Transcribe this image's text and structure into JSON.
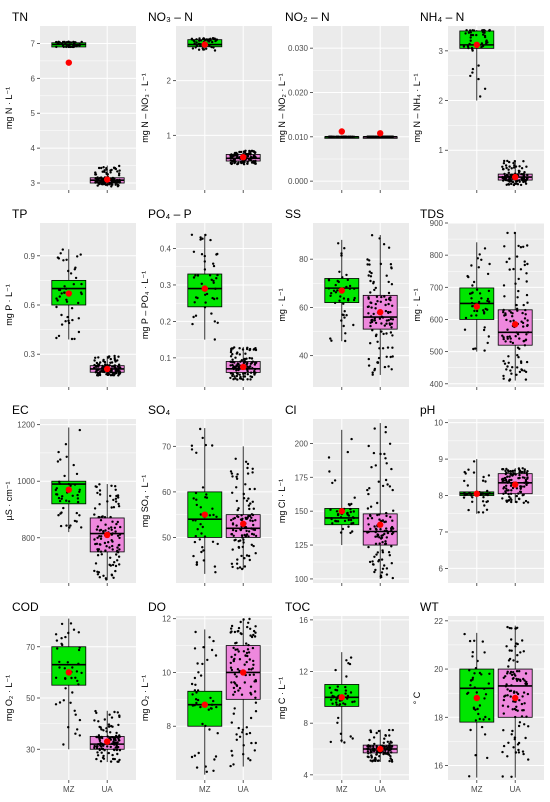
{
  "colors": {
    "panel_bg": "#ebebeb",
    "grid_major": "#ffffff",
    "mz_box": "#00e600",
    "ua_box": "#ee88dd",
    "point": "#000000",
    "mean": "#ff0000"
  },
  "chart_data": [
    {
      "type": "box",
      "title": "TN",
      "ylabel": "mg N · L⁻¹",
      "ylim": [
        2.8,
        7.5
      ],
      "yticks": [
        3,
        4,
        5,
        6,
        7
      ],
      "ytick_labels": [
        "3",
        "4",
        "5",
        "6",
        "7"
      ],
      "categories": [
        "MZ",
        "UA"
      ],
      "boxes": [
        {
          "q1": 6.9,
          "median": 6.97,
          "q3": 7.02,
          "whisker_low": 6.9,
          "whisker_high": 7.05,
          "mean": 6.45
        },
        {
          "q1": 3.0,
          "median": 3.08,
          "q3": 3.15,
          "whisker_low": 2.9,
          "whisker_high": 3.5,
          "mean": 3.1
        }
      ]
    },
    {
      "type": "box",
      "title": "NO₃ – N",
      "ylabel": "mg N – NO₃ · L⁻¹",
      "ylim": [
        0,
        3.0
      ],
      "yticks": [
        1,
        2
      ],
      "ytick_labels": [
        "1",
        "2"
      ],
      "categories": [
        "MZ",
        "UA"
      ],
      "boxes": [
        {
          "q1": 2.62,
          "median": 2.66,
          "q3": 2.75,
          "whisker_low": 2.55,
          "whisker_high": 2.78,
          "mean": 2.66
        },
        {
          "q1": 0.53,
          "median": 0.58,
          "q3": 0.65,
          "whisker_low": 0.47,
          "whisker_high": 0.72,
          "mean": 0.6
        }
      ]
    },
    {
      "type": "box",
      "title": "NO₂ – N",
      "ylabel": "mg N – NO₂ · L⁻¹",
      "ylim": [
        -0.002,
        0.035
      ],
      "yticks": [
        0,
        0.01,
        0.02,
        0.03
      ],
      "ytick_labels": [
        "0.000",
        "0.010",
        "0.020",
        "0.030"
      ],
      "categories": [
        "MZ",
        "UA"
      ],
      "boxes": [
        {
          "q1": 0.01,
          "median": 0.01,
          "q3": 0.01,
          "whisker_low": 0.01,
          "whisker_high": 0.01,
          "mean": 0.0112
        },
        {
          "q1": 0.01,
          "median": 0.01,
          "q3": 0.01,
          "whisker_low": 0.01,
          "whisker_high": 0.01,
          "mean": 0.0108
        }
      ]
    },
    {
      "type": "box",
      "title": "NH₄ – N",
      "ylabel": "mg N – NH₄ · L⁻¹",
      "ylim": [
        0.2,
        3.5
      ],
      "yticks": [
        1,
        2,
        3
      ],
      "ytick_labels": [
        "1",
        "2",
        "3"
      ],
      "categories": [
        "MZ",
        "UA"
      ],
      "boxes": [
        {
          "q1": 3.05,
          "median": 3.12,
          "q3": 3.4,
          "whisker_low": 2.0,
          "whisker_high": 3.42,
          "mean": 3.12
        },
        {
          "q1": 0.4,
          "median": 0.46,
          "q3": 0.52,
          "whisker_low": 0.3,
          "whisker_high": 0.8,
          "mean": 0.46
        }
      ]
    },
    {
      "type": "box",
      "title": "TP",
      "ylabel": "mg P · L⁻¹",
      "ylim": [
        0.1,
        1.1
      ],
      "yticks": [
        0.3,
        0.6,
        0.9
      ],
      "ytick_labels": [
        "0.3",
        "0.6",
        "0.9"
      ],
      "categories": [
        "MZ",
        "UA"
      ],
      "boxes": [
        {
          "q1": 0.6,
          "median": 0.7,
          "q3": 0.75,
          "whisker_low": 0.39,
          "whisker_high": 0.94,
          "mean": 0.67
        },
        {
          "q1": 0.19,
          "median": 0.21,
          "q3": 0.23,
          "whisker_low": 0.17,
          "whisker_high": 0.29,
          "mean": 0.21
        }
      ]
    },
    {
      "type": "box",
      "title": "PO₄ – P",
      "ylabel": "mg P – PO₄ · L⁻¹",
      "ylim": [
        0.02,
        0.47
      ],
      "yticks": [
        0.1,
        0.2,
        0.3,
        0.4
      ],
      "ytick_labels": [
        "0.1",
        "0.2",
        "0.3",
        "0.4"
      ],
      "categories": [
        "MZ",
        "UA"
      ],
      "boxes": [
        {
          "q1": 0.24,
          "median": 0.29,
          "q3": 0.33,
          "whisker_low": 0.15,
          "whisker_high": 0.44,
          "mean": 0.29
        },
        {
          "q1": 0.06,
          "median": 0.07,
          "q3": 0.09,
          "whisker_low": 0.04,
          "whisker_high": 0.13,
          "mean": 0.075
        }
      ]
    },
    {
      "type": "box",
      "title": "SS",
      "ylabel": "mg · L⁻¹",
      "ylim": [
        27,
        95
      ],
      "yticks": [
        40,
        60,
        80
      ],
      "ytick_labels": [
        "40",
        "60",
        "80"
      ],
      "categories": [
        "MZ",
        "UA"
      ],
      "boxes": [
        {
          "q1": 62,
          "median": 68,
          "q3": 72,
          "whisker_low": 46,
          "whisker_high": 88,
          "mean": 67
        },
        {
          "q1": 51,
          "median": 56,
          "q3": 65,
          "whisker_low": 32,
          "whisker_high": 90,
          "mean": 58
        }
      ]
    },
    {
      "type": "box",
      "title": "TDS",
      "ylabel": "mg · L⁻¹",
      "ylim": [
        390,
        900
      ],
      "yticks": [
        400,
        500,
        600,
        700,
        800,
        900
      ],
      "ytick_labels": [
        "400",
        "500",
        "600",
        "700",
        "800",
        "900"
      ],
      "categories": [
        "MZ",
        "UA"
      ],
      "boxes": [
        {
          "q1": 600,
          "median": 650,
          "q3": 698,
          "whisker_low": 500,
          "whisker_high": 840,
          "mean": 640
        },
        {
          "q1": 520,
          "median": 560,
          "q3": 630,
          "whisker_low": 410,
          "whisker_high": 870,
          "mean": 585
        }
      ]
    },
    {
      "type": "box",
      "title": "EC",
      "ylabel": "µS · cm⁻¹",
      "ylim": [
        640,
        1220
      ],
      "yticks": [
        800,
        1000,
        1200
      ],
      "ytick_labels": [
        "800",
        "1000",
        "1200"
      ],
      "categories": [
        "MZ",
        "UA"
      ],
      "boxes": [
        {
          "q1": 920,
          "median": 990,
          "q3": 1000,
          "whisker_low": 820,
          "whisker_high": 1190,
          "mean": 970
        },
        {
          "q1": 750,
          "median": 815,
          "q3": 870,
          "whisker_low": 650,
          "whisker_high": 990,
          "mean": 810
        }
      ]
    },
    {
      "type": "box",
      "title": "SO₄",
      "ylabel": "mg SO₄ · L⁻¹",
      "ylim": [
        40,
        76
      ],
      "yticks": [
        50,
        60,
        70
      ],
      "ytick_labels": [
        "50",
        "60",
        "70"
      ],
      "categories": [
        "MZ",
        "UA"
      ],
      "boxes": [
        {
          "q1": 50,
          "median": 54,
          "q3": 60,
          "whisker_low": 42,
          "whisker_high": 74,
          "mean": 55
        },
        {
          "q1": 50,
          "median": 52,
          "q3": 55,
          "whisker_low": 43,
          "whisker_high": 70,
          "mean": 53
        }
      ]
    },
    {
      "type": "box",
      "title": "Cl",
      "ylabel": "mg Cl · L⁻¹",
      "ylim": [
        97,
        218
      ],
      "yticks": [
        100,
        125,
        150,
        175,
        200
      ],
      "ytick_labels": [
        "100",
        "125",
        "150",
        "175",
        "200"
      ],
      "categories": [
        "MZ",
        "UA"
      ],
      "boxes": [
        {
          "q1": 140,
          "median": 145,
          "q3": 152,
          "whisker_low": 125,
          "whisker_high": 210,
          "mean": 150
        },
        {
          "q1": 125,
          "median": 135,
          "q3": 148,
          "whisker_low": 100,
          "whisker_high": 215,
          "mean": 140
        }
      ]
    },
    {
      "type": "box",
      "title": "pH",
      "ylabel": "",
      "ylim": [
        5.6,
        10.1
      ],
      "yticks": [
        6,
        7,
        8,
        9,
        10
      ],
      "ytick_labels": [
        "6",
        "7",
        "8",
        "9",
        "10"
      ],
      "categories": [
        "MZ",
        "UA"
      ],
      "boxes": [
        {
          "q1": 8.0,
          "median": 8.05,
          "q3": 8.1,
          "whisker_low": 7.5,
          "whisker_high": 9.0,
          "mean": 8.05
        },
        {
          "q1": 8.05,
          "median": 8.35,
          "q3": 8.6,
          "whisker_low": 7.8,
          "whisker_high": 8.75,
          "mean": 8.3
        }
      ]
    },
    {
      "type": "box",
      "title": "COD",
      "ylabel": "mg O₂ · L⁻¹",
      "ylim": [
        18,
        82
      ],
      "yticks": [
        30,
        50,
        70
      ],
      "ytick_labels": [
        "30",
        "50",
        "70"
      ],
      "categories": [
        "MZ",
        "UA"
      ],
      "boxes": [
        {
          "q1": 55,
          "median": 63,
          "q3": 70,
          "whisker_low": 30,
          "whisker_high": 81,
          "mean": 60
        },
        {
          "q1": 30,
          "median": 32,
          "q3": 35,
          "whisker_low": 25,
          "whisker_high": 45,
          "mean": 33
        }
      ]
    },
    {
      "type": "box",
      "title": "DO",
      "ylabel": "mg O₂ · L⁻¹",
      "ylim": [
        6,
        12.1
      ],
      "yticks": [
        8,
        10,
        12
      ],
      "ytick_labels": [
        "8",
        "10",
        "12"
      ],
      "categories": [
        "MZ",
        "UA"
      ],
      "boxes": [
        {
          "q1": 8.0,
          "median": 8.8,
          "q3": 9.3,
          "whisker_low": 6.2,
          "whisker_high": 11.6,
          "mean": 8.8
        },
        {
          "q1": 9.0,
          "median": 10.0,
          "q3": 11.0,
          "whisker_low": 6.5,
          "whisker_high": 12.0,
          "mean": 10.0
        }
      ]
    },
    {
      "type": "box",
      "title": "TOC",
      "ylabel": "mg C · L⁻¹",
      "ylim": [
        3.6,
        16.3
      ],
      "yticks": [
        4,
        8,
        12,
        16
      ],
      "ytick_labels": [
        "4",
        "8",
        "12",
        "16"
      ],
      "categories": [
        "MZ",
        "UA"
      ],
      "boxes": [
        {
          "q1": 9.3,
          "median": 10.0,
          "q3": 11.0,
          "whisker_low": 6.5,
          "whisker_high": 13.5,
          "mean": 10.0
        },
        {
          "q1": 5.7,
          "median": 6.0,
          "q3": 6.3,
          "whisker_low": 5.0,
          "whisker_high": 7.5,
          "mean": 6.0
        }
      ]
    },
    {
      "type": "box",
      "title": "WT",
      "ylabel": "° C",
      "ylim": [
        15.4,
        22.2
      ],
      "yticks": [
        16,
        18,
        20,
        22
      ],
      "ytick_labels": [
        "16",
        "18",
        "20",
        "22"
      ],
      "categories": [
        "MZ",
        "UA"
      ],
      "boxes": [
        {
          "q1": 17.8,
          "median": 19.2,
          "q3": 20.0,
          "whisker_low": 15.5,
          "whisker_high": 21.5,
          "mean": 18.8
        },
        {
          "q1": 18.0,
          "median": 19.3,
          "q3": 20.0,
          "whisker_low": 15.5,
          "whisker_high": 21.8,
          "mean": 18.8
        }
      ]
    }
  ]
}
